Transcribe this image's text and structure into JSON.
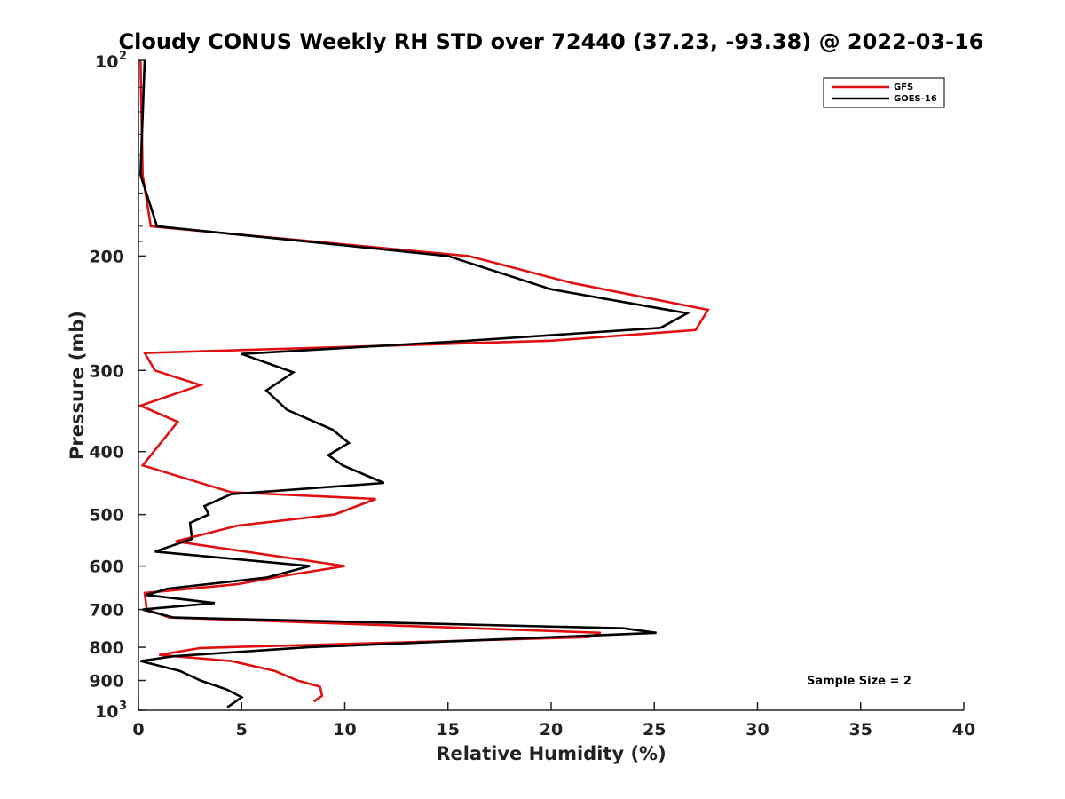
{
  "chart_data": {
    "type": "line",
    "title": "Cloudy CONUS Weekly RH STD over 72440 (37.23, -93.38) @ 2022-03-16",
    "xlabel": "Relative Humidity (%)",
    "ylabel": "Pressure (mb)",
    "xlim": [
      0,
      40
    ],
    "ylim": [
      100,
      1000
    ],
    "y_scale": "log",
    "y_reversed": true,
    "x_ticks": [
      "0",
      "5",
      "10",
      "15",
      "20",
      "25",
      "30",
      "35",
      "40"
    ],
    "y_ticks": [
      {
        "value": 100,
        "base": "10",
        "exp": "2"
      },
      {
        "value": 200,
        "label": "200"
      },
      {
        "value": 300,
        "label": "300"
      },
      {
        "value": 400,
        "label": "400"
      },
      {
        "value": 500,
        "label": "500"
      },
      {
        "value": 600,
        "label": "600"
      },
      {
        "value": 700,
        "label": "700"
      },
      {
        "value": 800,
        "label": "800"
      },
      {
        "value": 900,
        "label": "900"
      },
      {
        "value": 1000,
        "base": "10",
        "exp": "3"
      }
    ],
    "legend_position": "top-right",
    "annotation": "Sample Size = 2",
    "series": [
      {
        "name": "GFS",
        "color": "#e01010",
        "points": [
          [
            0.1,
            100
          ],
          [
            0.2,
            150
          ],
          [
            0.6,
            180
          ],
          [
            16,
            200
          ],
          [
            21,
            220
          ],
          [
            27.6,
            242
          ],
          [
            27,
            260
          ],
          [
            20,
            270
          ],
          [
            0.3,
            282
          ],
          [
            0.8,
            300
          ],
          [
            3,
            316
          ],
          [
            0.1,
            340
          ],
          [
            1.9,
            360
          ],
          [
            0.2,
            420
          ],
          [
            4.5,
            462
          ],
          [
            11.5,
            473
          ],
          [
            9.5,
            500
          ],
          [
            4.8,
            520
          ],
          [
            1.8,
            550
          ],
          [
            10,
            600
          ],
          [
            7.2,
            620
          ],
          [
            4.8,
            640
          ],
          [
            0.3,
            660
          ],
          [
            0.4,
            700
          ],
          [
            1.5,
            720
          ],
          [
            22.4,
            760
          ],
          [
            21.8,
            772
          ],
          [
            3,
            802
          ],
          [
            1,
            822
          ],
          [
            4.5,
            840
          ],
          [
            6.6,
            870
          ],
          [
            7.7,
            900
          ],
          [
            8.8,
            920
          ],
          [
            8.9,
            950
          ],
          [
            8.5,
            970
          ]
        ]
      },
      {
        "name": "GOES-16",
        "color": "#000000",
        "points": [
          [
            0.3,
            100
          ],
          [
            0.1,
            150
          ],
          [
            0.9,
            180
          ],
          [
            15,
            200
          ],
          [
            20,
            225
          ],
          [
            26.6,
            245
          ],
          [
            25.3,
            258
          ],
          [
            16,
            270
          ],
          [
            5,
            283
          ],
          [
            7.5,
            302
          ],
          [
            6.2,
            322
          ],
          [
            7.2,
            345
          ],
          [
            9.4,
            370
          ],
          [
            10.2,
            388
          ],
          [
            9.2,
            405
          ],
          [
            9.9,
            420
          ],
          [
            11.9,
            447
          ],
          [
            4.5,
            465
          ],
          [
            3.2,
            485
          ],
          [
            3.4,
            500
          ],
          [
            2.5,
            515
          ],
          [
            2.6,
            545
          ],
          [
            0.8,
            570
          ],
          [
            8.3,
            600
          ],
          [
            6.2,
            625
          ],
          [
            1.4,
            650
          ],
          [
            0.4,
            665
          ],
          [
            3.7,
            684
          ],
          [
            0.2,
            700
          ],
          [
            1.7,
            720
          ],
          [
            23.5,
            748
          ],
          [
            25.1,
            760
          ],
          [
            8.2,
            800
          ],
          [
            1.7,
            826
          ],
          [
            0.1,
            840
          ],
          [
            2,
            870
          ],
          [
            3,
            900
          ],
          [
            4.3,
            930
          ],
          [
            5,
            955
          ],
          [
            4.3,
            990
          ]
        ]
      }
    ]
  }
}
